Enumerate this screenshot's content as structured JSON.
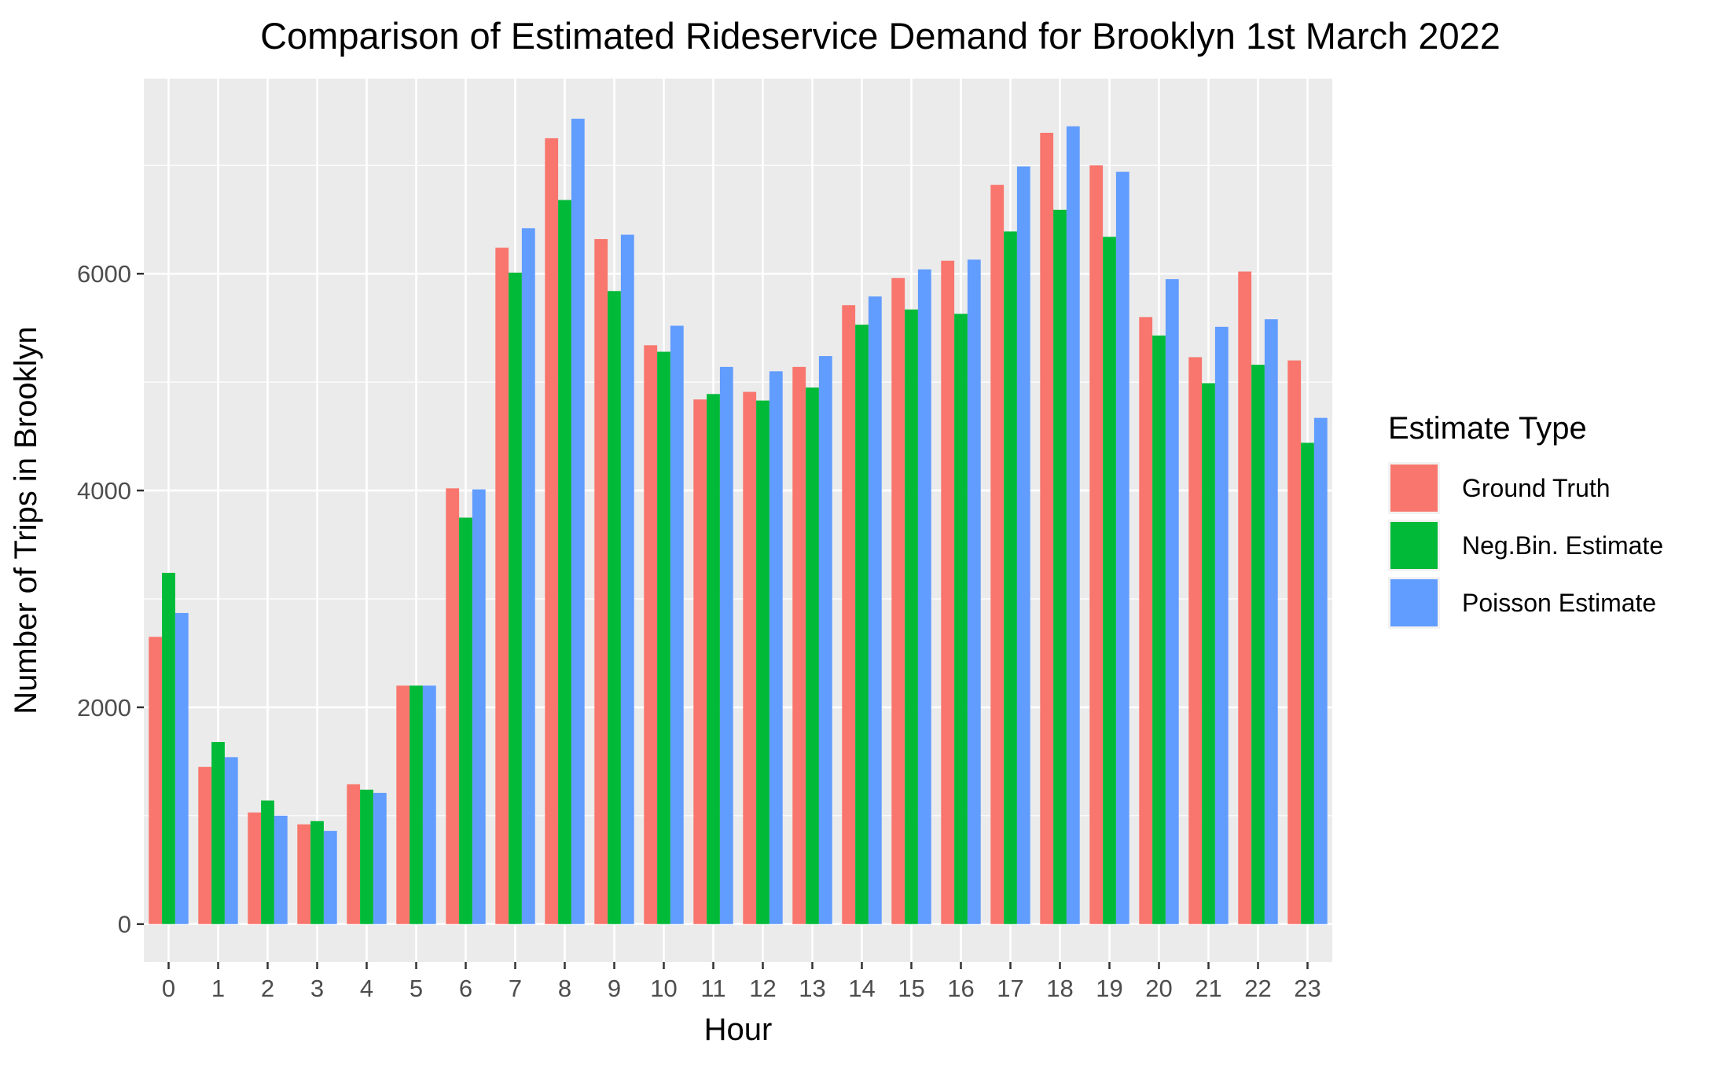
{
  "chart_data": {
    "type": "bar",
    "title": "Comparison of Estimated Rideservice Demand for Brooklyn 1st March 2022",
    "xlabel": "Hour",
    "ylabel": "Number of Trips in Brooklyn",
    "ylim": [
      -350,
      7800
    ],
    "y_ticks": [
      0,
      2000,
      4000,
      6000
    ],
    "y_tick_labels": [
      "0",
      "2000",
      "4000",
      "6000"
    ],
    "grid": true,
    "legend_position": "right",
    "legend_title": "Estimate Type",
    "categories": [
      "0",
      "1",
      "2",
      "3",
      "4",
      "5",
      "6",
      "7",
      "8",
      "9",
      "10",
      "11",
      "12",
      "13",
      "14",
      "15",
      "16",
      "17",
      "18",
      "19",
      "20",
      "21",
      "22",
      "23"
    ],
    "series": [
      {
        "name": "Ground Truth",
        "color": "#F8766D",
        "values": [
          2650,
          1450,
          1030,
          920,
          1290,
          2200,
          4020,
          6240,
          7250,
          6320,
          5340,
          4840,
          4910,
          5140,
          5710,
          5960,
          6120,
          6820,
          7300,
          7000,
          5600,
          5230,
          6020,
          5200
        ]
      },
      {
        "name": "Neg.Bin. Estimate",
        "color": "#00BA38",
        "values": [
          3240,
          1680,
          1140,
          950,
          1240,
          2200,
          3750,
          6010,
          6680,
          5840,
          5280,
          4890,
          4830,
          4950,
          5530,
          5670,
          5630,
          6390,
          6590,
          6340,
          5430,
          4990,
          5160,
          4440
        ]
      },
      {
        "name": "Poisson Estimate",
        "color": "#619CFF",
        "values": [
          2870,
          1540,
          1000,
          860,
          1210,
          2200,
          4010,
          6420,
          7430,
          6360,
          5520,
          5140,
          5100,
          5240,
          5790,
          6040,
          6130,
          6990,
          7360,
          6940,
          5950,
          5510,
          5580,
          4670
        ]
      }
    ]
  },
  "colors": {
    "panel_background": "#EBEBEB",
    "grid_major": "#FFFFFF",
    "tick_text": "#4D4D4D"
  }
}
